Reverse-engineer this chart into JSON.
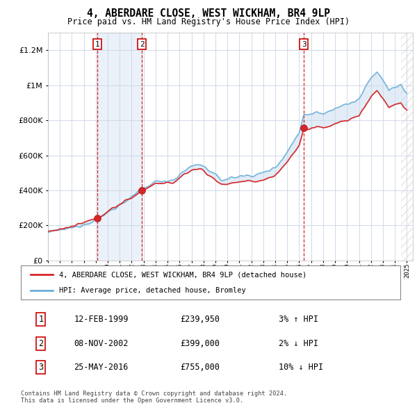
{
  "title": "4, ABERDARE CLOSE, WEST WICKHAM, BR4 9LP",
  "subtitle": "Price paid vs. HM Land Registry's House Price Index (HPI)",
  "ylim": [
    0,
    1300000
  ],
  "yticks": [
    0,
    200000,
    400000,
    600000,
    800000,
    1000000,
    1200000
  ],
  "ytick_labels": [
    "£0",
    "£200K",
    "£400K",
    "£600K",
    "£800K",
    "£1M",
    "£1.2M"
  ],
  "x_start_year": 1995,
  "x_end_year": 2025,
  "hpi_color": "#6baed6",
  "price_color": "#d62728",
  "sale_marker_color": "#d62728",
  "background_color": "#ffffff",
  "plot_bg_color": "#ffffff",
  "shade_color": "#c6dbef",
  "sale1_date": "12-FEB-1999",
  "sale1_year": 1999.11,
  "sale1_price": 239950,
  "sale1_label": "1",
  "sale1_hpi_pct": "3% ↑ HPI",
  "sale2_date": "08-NOV-2002",
  "sale2_year": 2002.85,
  "sale2_price": 399000,
  "sale2_label": "2",
  "sale2_hpi_pct": "2% ↓ HPI",
  "sale3_date": "25-MAY-2016",
  "sale3_year": 2016.39,
  "sale3_price": 755000,
  "sale3_label": "3",
  "sale3_hpi_pct": "10% ↓ HPI",
  "legend_line1": "4, ABERDARE CLOSE, WEST WICKHAM, BR4 9LP (detached house)",
  "legend_line2": "HPI: Average price, detached house, Bromley",
  "footer1": "Contains HM Land Registry data © Crown copyright and database right 2024.",
  "footer2": "This data is licensed under the Open Government Licence v3.0."
}
